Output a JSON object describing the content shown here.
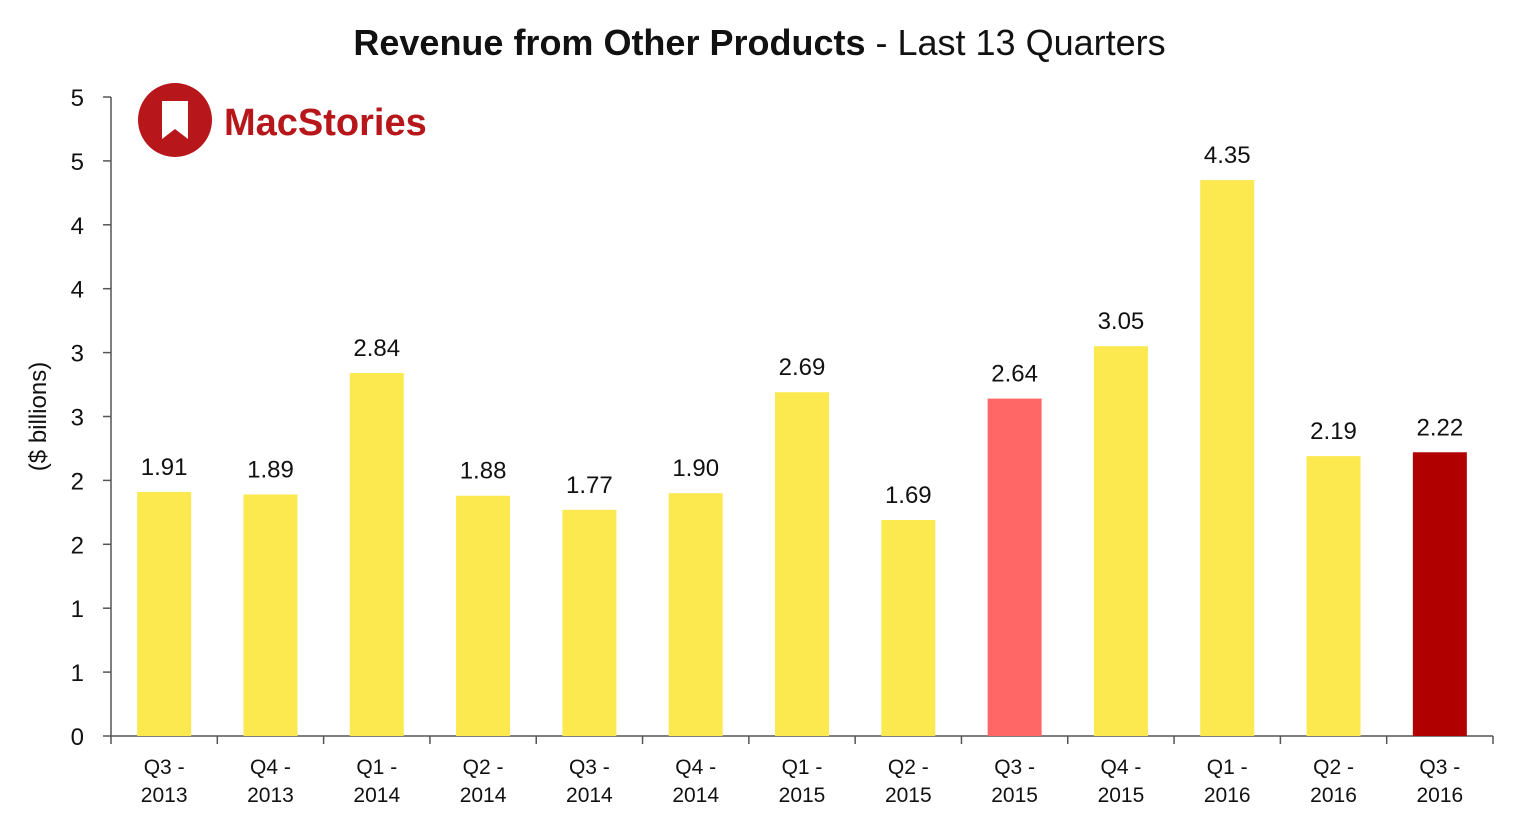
{
  "title": {
    "bold_part": "Revenue from Other Products",
    "regular_part": " - Last 13 Quarters"
  },
  "logo": {
    "text": "MacStories",
    "color": "#b7161a"
  },
  "chart_data": {
    "type": "bar",
    "title": "Revenue from Other Products - Last 13 Quarters",
    "xlabel": "",
    "ylabel": "($ billions)",
    "ylim": [
      0,
      5
    ],
    "y_ticks": [
      0,
      0.5,
      1,
      1.5,
      2,
      2.5,
      3,
      3.5,
      4,
      4.5,
      5
    ],
    "y_tick_labels": [
      "0",
      "1",
      "1",
      "2",
      "2",
      "3",
      "3",
      "4",
      "4",
      "5",
      "5"
    ],
    "categories": [
      [
        "Q3 -",
        "2013"
      ],
      [
        "Q4 -",
        "2013"
      ],
      [
        "Q1 -",
        "2014"
      ],
      [
        "Q2 -",
        "2014"
      ],
      [
        "Q3 -",
        "2014"
      ],
      [
        "Q4 -",
        "2014"
      ],
      [
        "Q1 -",
        "2015"
      ],
      [
        "Q2 -",
        "2015"
      ],
      [
        "Q3 -",
        "2015"
      ],
      [
        "Q4 -",
        "2015"
      ],
      [
        "Q1 -",
        "2016"
      ],
      [
        "Q2 -",
        "2016"
      ],
      [
        "Q3 -",
        "2016"
      ]
    ],
    "values": [
      1.91,
      1.89,
      2.84,
      1.88,
      1.77,
      1.9,
      2.69,
      1.69,
      2.64,
      3.05,
      4.35,
      2.19,
      2.22
    ],
    "value_labels": [
      "1.91",
      "1.89",
      "2.84",
      "1.88",
      "1.77",
      "1.90",
      "2.69",
      "1.69",
      "2.64",
      "3.05",
      "4.35",
      "2.19",
      "2.22"
    ],
    "bar_colors": [
      "#fce94f",
      "#fce94f",
      "#fce94f",
      "#fce94f",
      "#fce94f",
      "#fce94f",
      "#fce94f",
      "#fce94f",
      "#ff6666",
      "#fce94f",
      "#fce94f",
      "#fce94f",
      "#b00000"
    ],
    "grid": false,
    "legend": "none"
  }
}
